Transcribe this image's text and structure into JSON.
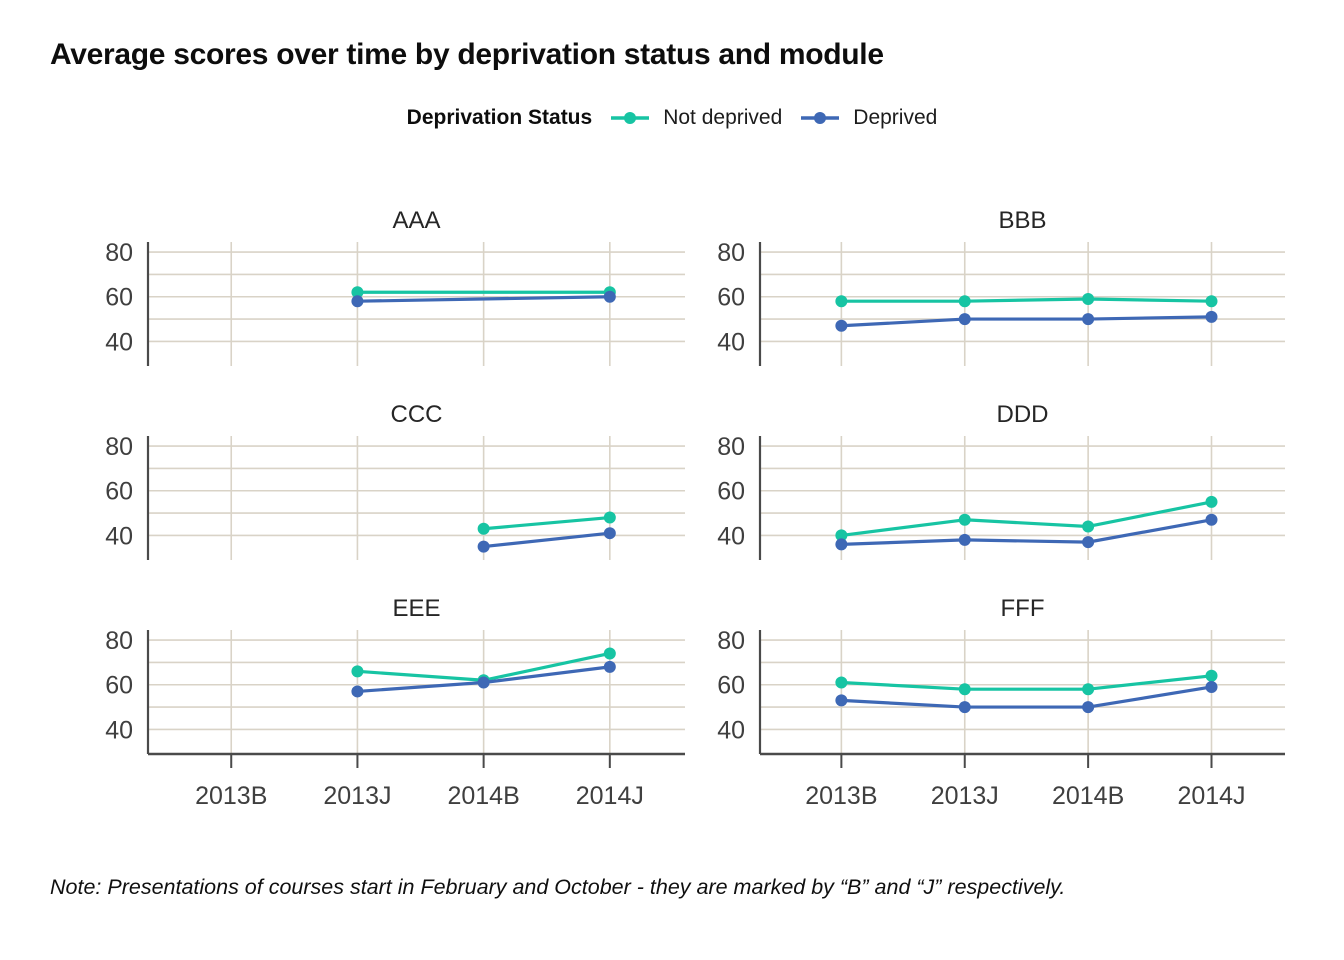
{
  "chart_data": {
    "type": "line",
    "title": "Average scores over time by deprivation status and module",
    "legend_title": "Deprivation Status",
    "legend_position": "top",
    "categories": [
      "2013B",
      "2013J",
      "2014B",
      "2014J"
    ],
    "yticks": [
      40,
      60,
      80
    ],
    "gridlines_y": [
      40,
      50,
      60,
      70,
      80
    ],
    "ylim": [
      29,
      84.5
    ],
    "grid": "on",
    "series_meta": [
      {
        "name": "Not deprived",
        "color": "#17c4a3"
      },
      {
        "name": "Deprived",
        "color": "#3e68b5"
      }
    ],
    "panels": [
      {
        "title": "AAA",
        "series": [
          {
            "name": "Not deprived",
            "values": [
              null,
              62,
              null,
              62
            ]
          },
          {
            "name": "Deprived",
            "values": [
              null,
              58,
              null,
              60
            ]
          }
        ]
      },
      {
        "title": "BBB",
        "series": [
          {
            "name": "Not deprived",
            "values": [
              58,
              58,
              59,
              58
            ]
          },
          {
            "name": "Deprived",
            "values": [
              47,
              50,
              50,
              51
            ]
          }
        ]
      },
      {
        "title": "CCC",
        "series": [
          {
            "name": "Not deprived",
            "values": [
              null,
              null,
              43,
              48
            ]
          },
          {
            "name": "Deprived",
            "values": [
              null,
              null,
              35,
              41
            ]
          }
        ]
      },
      {
        "title": "DDD",
        "series": [
          {
            "name": "Not deprived",
            "values": [
              40,
              47,
              44,
              55
            ]
          },
          {
            "name": "Deprived",
            "values": [
              36,
              38,
              37,
              47
            ]
          }
        ]
      },
      {
        "title": "EEE",
        "series": [
          {
            "name": "Not deprived",
            "values": [
              null,
              66,
              62,
              74
            ]
          },
          {
            "name": "Deprived",
            "values": [
              null,
              57,
              61,
              68
            ]
          }
        ]
      },
      {
        "title": "FFF",
        "series": [
          {
            "name": "Not deprived",
            "values": [
              61,
              58,
              58,
              64
            ]
          },
          {
            "name": "Deprived",
            "values": [
              53,
              50,
              50,
              59
            ]
          }
        ]
      }
    ],
    "note": "Note: Presentations of courses start in February and October - they are marked by “B” and “J” respectively.",
    "colors": {
      "not_deprived": "#17c4a3",
      "deprived": "#3e68b5",
      "gridline": "#d9d3c7",
      "axis": "#4a4a4a",
      "tick_label": "#3f3f3f"
    }
  }
}
